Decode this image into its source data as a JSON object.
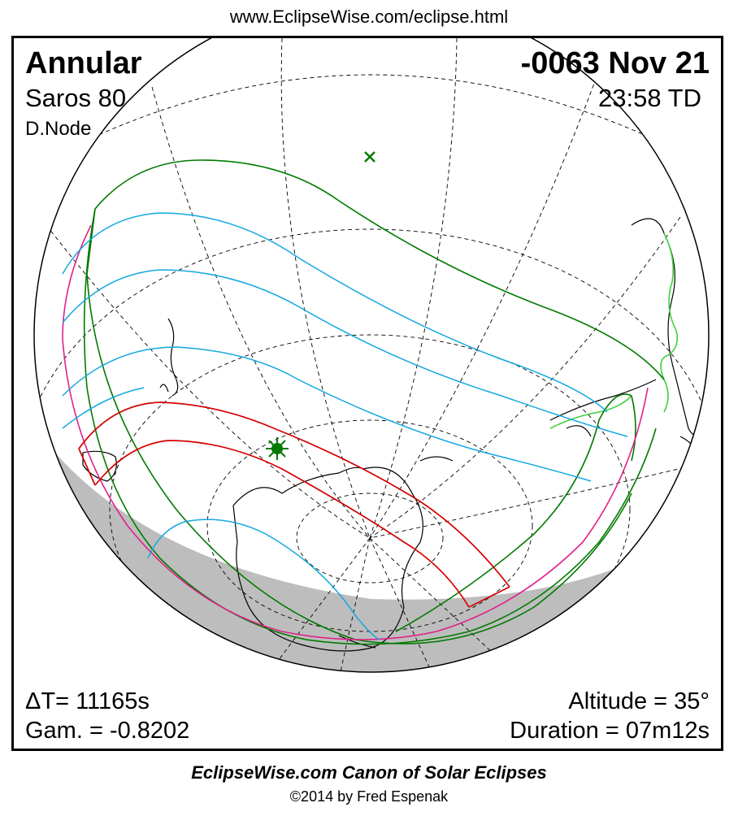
{
  "header": {
    "url": "www.EclipseWise.com/eclipse.html"
  },
  "eclipse": {
    "type": "Annular",
    "saros": "Saros  80",
    "node": "D.Node",
    "date": "-0063 Nov 21",
    "time": "23:58 TD",
    "delta_t": "ΔT=  11165s",
    "gamma": "Gam. = -0.8202",
    "altitude": "Altitude = 35°",
    "duration": "Duration = 07m12s"
  },
  "map": {
    "colors": {
      "central_path": "#d40000",
      "penumbral_limits": "#007a00",
      "contours": "#14a8e0",
      "rise_set": "#e0208a",
      "night": "#bdbdbd",
      "coast_highlight": "#40d040"
    },
    "markers": [
      "greatest-eclipse-marker",
      "subsolar-point-marker"
    ]
  },
  "footer": {
    "title": "EclipseWise.com Canon of Solar Eclipses",
    "credit": "©2014 by Fred Espenak"
  }
}
